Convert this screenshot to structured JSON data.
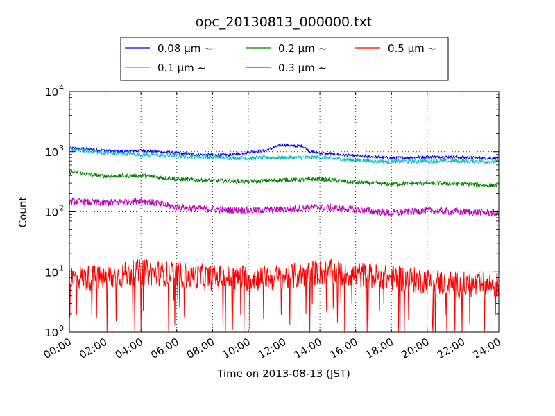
{
  "chart_data": {
    "type": "line",
    "title": "opc_20130813_000000.txt",
    "xlabel": "Time on 2013-08-13 (JST)",
    "ylabel": "Count",
    "x_ticks": [
      "00:00",
      "02:00",
      "04:00",
      "06:00",
      "08:00",
      "10:00",
      "12:00",
      "14:00",
      "16:00",
      "18:00",
      "20:00",
      "22:00",
      "24:00"
    ],
    "y_ticks": [
      {
        "base": "10",
        "exp": "0",
        "value": 1
      },
      {
        "base": "10",
        "exp": "1",
        "value": 10
      },
      {
        "base": "10",
        "exp": "2",
        "value": 100
      },
      {
        "base": "10",
        "exp": "3",
        "value": 1000
      },
      {
        "base": "10",
        "exp": "4",
        "value": 10000
      }
    ],
    "y_scale": "log",
    "xlim_hours": [
      0,
      24
    ],
    "ylim": [
      1,
      10000
    ],
    "grid": true,
    "legend_position": "top-center",
    "series": [
      {
        "name": "0.08 μm ~",
        "color": "#0000ff",
        "x": [
          0,
          1,
          2,
          3,
          4,
          5,
          6,
          7,
          8,
          9,
          10,
          11,
          11.5,
          12,
          12.5,
          13,
          13.5,
          14,
          15,
          16,
          17,
          18,
          19,
          20,
          21,
          22,
          23,
          24
        ],
        "values": [
          1150,
          1100,
          1050,
          1000,
          1050,
          1000,
          950,
          900,
          880,
          880,
          980,
          1050,
          1200,
          1300,
          1250,
          1250,
          1000,
          950,
          900,
          850,
          820,
          780,
          800,
          820,
          820,
          800,
          780,
          780
        ]
      },
      {
        "name": "0.1 μm ~",
        "color": "#00bfbf",
        "x": [
          0,
          2,
          4,
          6,
          8,
          10,
          12,
          14,
          16,
          18,
          20,
          22,
          24
        ],
        "values": [
          1100,
          950,
          900,
          850,
          800,
          780,
          800,
          800,
          720,
          680,
          700,
          700,
          680
        ]
      },
      {
        "name": "0.2 μm ~",
        "color": "#008000",
        "x": [
          0,
          2,
          4,
          6,
          8,
          10,
          12,
          14,
          16,
          18,
          20,
          22,
          24
        ],
        "values": [
          460,
          390,
          400,
          350,
          330,
          320,
          340,
          350,
          310,
          290,
          300,
          290,
          270
        ]
      },
      {
        "name": "0.3 μm ~",
        "color": "#bf00bf",
        "x": [
          0,
          2,
          4,
          6,
          8,
          10,
          12,
          14,
          16,
          18,
          20,
          22,
          24
        ],
        "values": [
          150,
          140,
          155,
          120,
          110,
          105,
          110,
          120,
          110,
          95,
          105,
          100,
          95
        ]
      },
      {
        "name": "0.5 μm ~",
        "color": "#ff0000",
        "x": [
          0,
          2,
          4,
          6,
          8,
          10,
          12,
          14,
          16,
          18,
          20,
          22,
          24
        ],
        "values": [
          8,
          8,
          10,
          9,
          8,
          8,
          8,
          10,
          9,
          8,
          7,
          6,
          6
        ]
      }
    ]
  }
}
